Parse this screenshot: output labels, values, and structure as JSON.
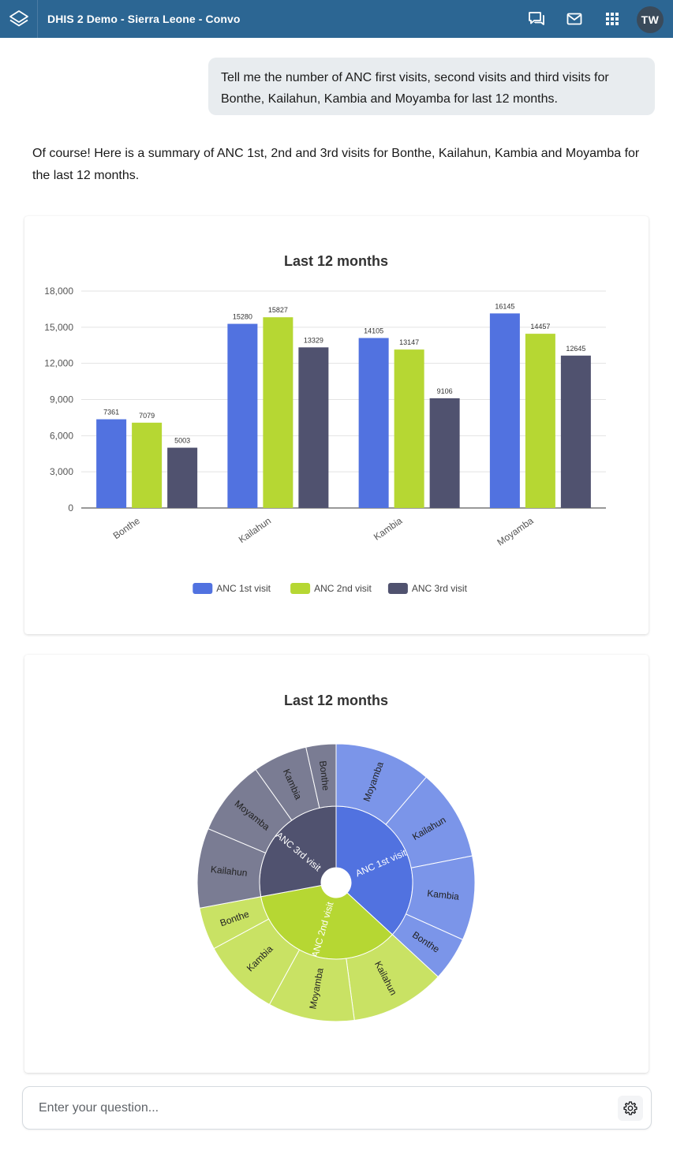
{
  "app": {
    "title": "DHIS 2 Demo - Sierra Leone - Convo",
    "user_initials": "TW"
  },
  "header_icons": [
    "messages-icon",
    "email-icon",
    "apps-grid-icon"
  ],
  "chat": {
    "user_message": "Tell me the number of ANC first visits, second visits and third visits for Bonthe, Kailahun, Kambia and Moyamba for last 12 months.",
    "assistant_message": "Of course! Here is a summary of ANC 1st, 2nd and 3rd visits for Bonthe, Kailahun, Kambia and Moyamba for the last 12 months."
  },
  "colors": {
    "header": "#2c6693",
    "anc1": "#5172e0",
    "anc2": "#b6d733",
    "anc3": "#50526f"
  },
  "chart_data": [
    {
      "type": "bar",
      "title": "Last 12 months",
      "categories": [
        "Bonthe",
        "Kailahun",
        "Kambia",
        "Moyamba"
      ],
      "series": [
        {
          "name": "ANC 1st visit",
          "color": "#5172e0",
          "values": [
            7361,
            15280,
            14105,
            16145
          ]
        },
        {
          "name": "ANC 2nd visit",
          "color": "#b6d733",
          "values": [
            7079,
            15827,
            13147,
            14457
          ]
        },
        {
          "name": "ANC 3rd visit",
          "color": "#50526f",
          "values": [
            5003,
            13329,
            9106,
            12645
          ]
        }
      ],
      "ylim": [
        0,
        18000
      ],
      "yticks": [
        0,
        3000,
        6000,
        9000,
        12000,
        15000,
        18000
      ],
      "ytick_labels": [
        "0",
        "3,000",
        "6,000",
        "9,000",
        "12,000",
        "15,000",
        "18,000"
      ],
      "xlabel": "",
      "ylabel": "",
      "legend": "bottom-center",
      "grid": true
    },
    {
      "type": "sunburst",
      "title": "Last 12 months",
      "inner": [
        {
          "name": "ANC 1st visit",
          "color": "#5172e0",
          "value": 52891
        },
        {
          "name": "ANC 2nd visit",
          "color": "#b6d733",
          "value": 50510
        },
        {
          "name": "ANC 3rd visit",
          "color": "#50526f",
          "value": 40083
        }
      ],
      "outer": [
        {
          "parent": "ANC 1st visit",
          "name": "Moyamba",
          "value": 16145,
          "color": "#7b95e9"
        },
        {
          "parent": "ANC 1st visit",
          "name": "Kailahun",
          "value": 15280,
          "color": "#7b95e9"
        },
        {
          "parent": "ANC 1st visit",
          "name": "Kambia",
          "value": 14105,
          "color": "#7b95e9"
        },
        {
          "parent": "ANC 1st visit",
          "name": "Bonthe",
          "value": 7361,
          "color": "#7b95e9"
        },
        {
          "parent": "ANC 2nd visit",
          "name": "Kailahun",
          "value": 15827,
          "color": "#c9e264"
        },
        {
          "parent": "ANC 2nd visit",
          "name": "Moyamba",
          "value": 14457,
          "color": "#c9e264"
        },
        {
          "parent": "ANC 2nd visit",
          "name": "Kambia",
          "value": 13147,
          "color": "#c9e264"
        },
        {
          "parent": "ANC 2nd visit",
          "name": "Bonthe",
          "value": 7079,
          "color": "#c9e264"
        },
        {
          "parent": "ANC 3rd visit",
          "name": "Kailahun",
          "value": 13329,
          "color": "#7a7c93"
        },
        {
          "parent": "ANC 3rd visit",
          "name": "Moyamba",
          "value": 12645,
          "color": "#7a7c93"
        },
        {
          "parent": "ANC 3rd visit",
          "name": "Kambia",
          "value": 9106,
          "color": "#7a7c93"
        },
        {
          "parent": "ANC 3rd visit",
          "name": "Bonthe",
          "value": 5003,
          "color": "#7a7c93"
        }
      ]
    }
  ],
  "input": {
    "placeholder": "Enter your question..."
  }
}
